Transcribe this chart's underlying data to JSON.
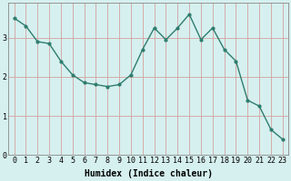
{
  "x": [
    0,
    1,
    2,
    3,
    4,
    5,
    6,
    7,
    8,
    9,
    10,
    11,
    12,
    13,
    14,
    15,
    16,
    17,
    18,
    19,
    20,
    21,
    22,
    23
  ],
  "y": [
    3.5,
    3.3,
    2.9,
    2.85,
    2.4,
    2.05,
    1.85,
    1.8,
    1.75,
    1.8,
    2.05,
    2.7,
    3.25,
    2.95,
    3.25,
    3.6,
    2.95,
    3.25,
    2.7,
    2.4,
    1.4,
    1.25,
    0.65,
    0.4
  ],
  "line_color": "#2e7d6e",
  "marker": "o",
  "marker_size": 2,
  "background_color": "#d6f0ef",
  "grid_color": "#d4a0a0",
  "xlabel": "Humidex (Indice chaleur)",
  "xlim": [
    -0.5,
    23.5
  ],
  "ylim": [
    0,
    3.9
  ],
  "yticks": [
    0,
    1,
    2,
    3
  ],
  "xticks": [
    0,
    1,
    2,
    3,
    4,
    5,
    6,
    7,
    8,
    9,
    10,
    11,
    12,
    13,
    14,
    15,
    16,
    17,
    18,
    19,
    20,
    21,
    22,
    23
  ],
  "xlabel_fontsize": 7,
  "tick_fontsize": 6
}
